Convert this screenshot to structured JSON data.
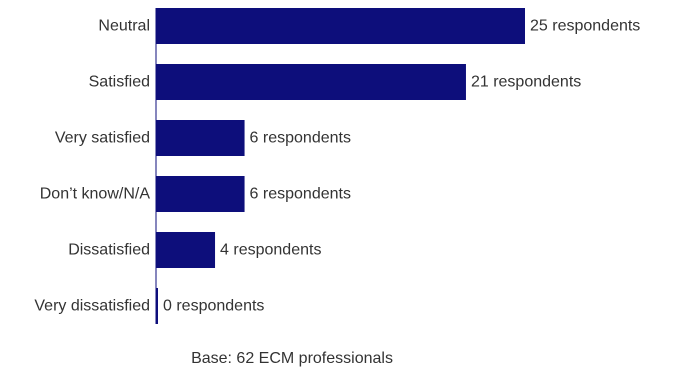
{
  "chart_data": {
    "type": "bar",
    "orientation": "horizontal",
    "categories": [
      "Neutral",
      "Satisfied",
      "Very satisfied",
      "Don’t know/N/A",
      "Dissatisfied",
      "Very dissatisfied"
    ],
    "values": [
      25,
      21,
      6,
      6,
      4,
      0
    ],
    "value_labels": [
      "25 respondents",
      "21 respondents",
      "6 respondents",
      "6 respondents",
      "4 respondents",
      "0 respondents"
    ],
    "title": "",
    "xlabel": "",
    "ylabel": "",
    "xlim": [
      0,
      25
    ],
    "grid": false,
    "legend": "none",
    "bar_color": "#0d0e7b",
    "note": "Base: 62 ECM professionals"
  }
}
